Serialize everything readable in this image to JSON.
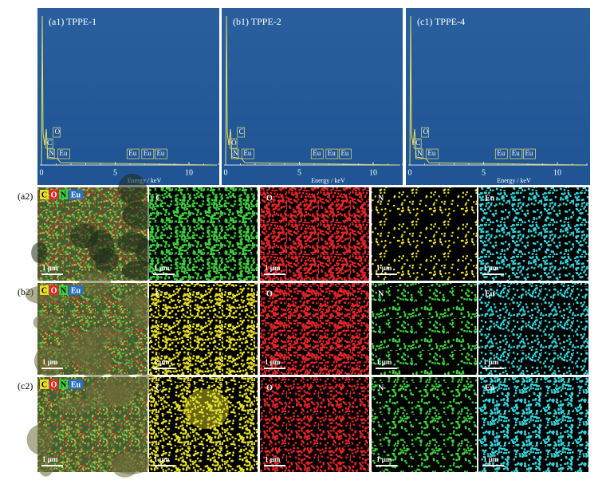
{
  "spectra": [
    {
      "label": "(a1) TPPE-1",
      "peaks": [
        "O",
        "C",
        "N",
        "Eu",
        "Eu",
        "Eu",
        "Eu"
      ],
      "ticks": [
        0,
        5,
        10
      ],
      "x_label": "Energy / keV"
    },
    {
      "label": "(b1) TPPE-2",
      "peaks": [
        "C",
        "O",
        "N",
        "Eu",
        "Eu",
        "Eu",
        "Eu"
      ],
      "ticks": [
        0,
        5,
        10
      ],
      "x_label": "Energy / keV"
    },
    {
      "label": "(c1) TPPE-4",
      "peaks": [
        "O",
        "C",
        "N",
        "Eu",
        "Eu",
        "Eu",
        "Eu"
      ],
      "ticks": [
        0,
        5,
        10
      ],
      "x_label": "Energy / keV"
    }
  ],
  "maps": [
    {
      "row_label": "(a2)",
      "legend": [
        "C",
        "O",
        "N",
        "Eu"
      ],
      "elements": [
        "C",
        "O",
        "N",
        "Eu"
      ],
      "scale": "1 μm"
    },
    {
      "row_label": "(b2)",
      "legend": [
        "C",
        "O",
        "N",
        "Eu"
      ],
      "elements": [
        "C",
        "O",
        "N",
        "Eu"
      ],
      "scale": "1 μm"
    },
    {
      "row_label": "(c2)",
      "legend": [
        "C",
        "O",
        "N",
        "Eu"
      ],
      "elements": [
        "C",
        "O",
        "N",
        "Eu"
      ],
      "scale": "1 μm"
    }
  ]
}
